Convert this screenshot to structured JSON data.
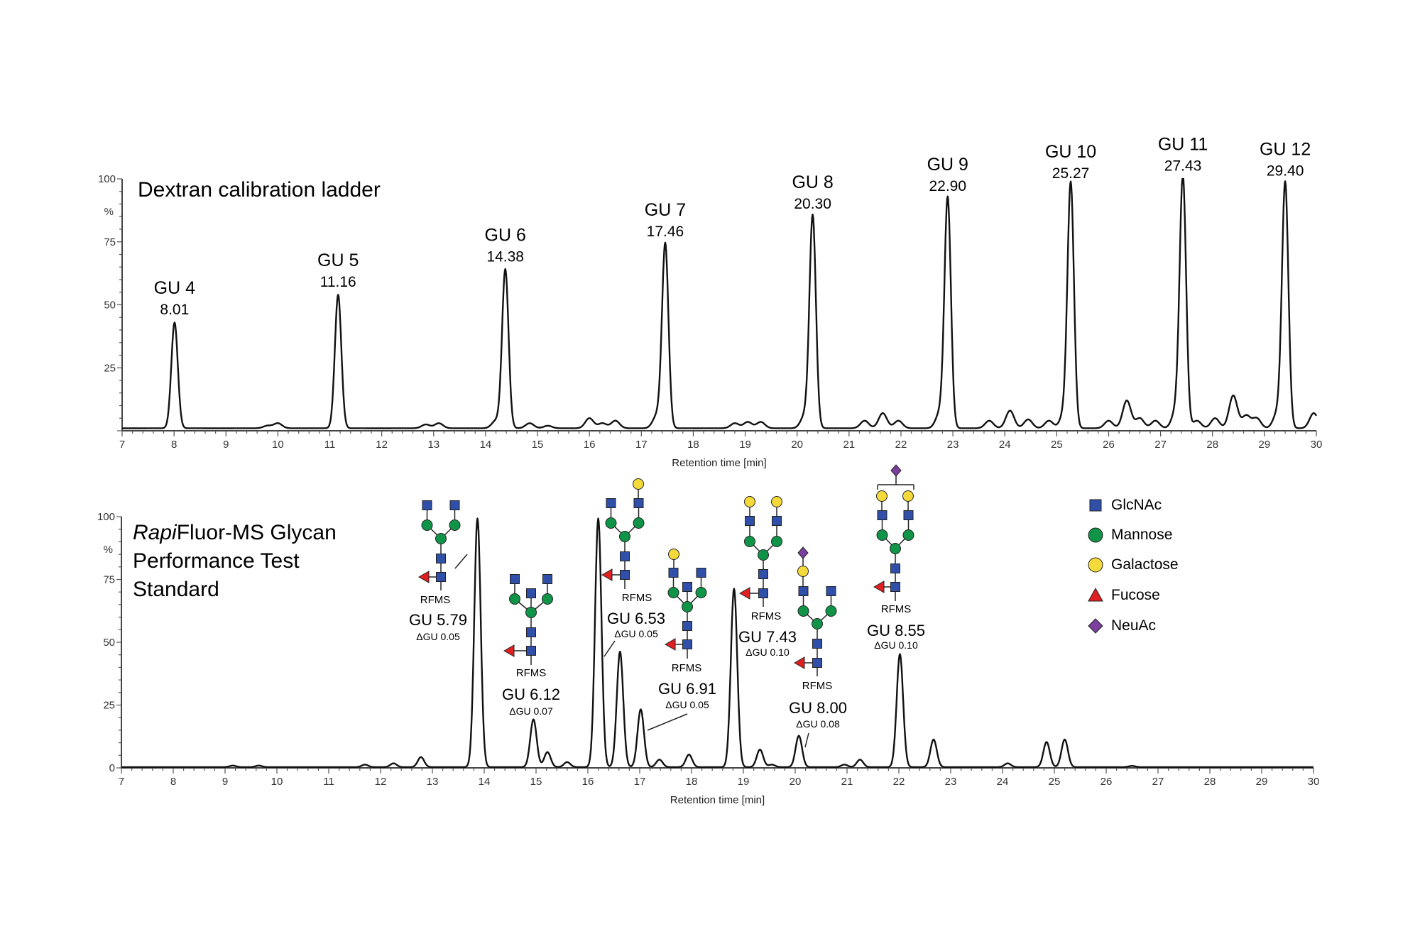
{
  "colors": {
    "trace": "#111111",
    "glcnac": "#2f4fa8",
    "mannose": "#0f9448",
    "galactose": "#f4d93a",
    "fucose": "#e02020",
    "neuac": "#7b3f9e"
  },
  "chart_data": [
    {
      "type": "line",
      "title": "Dextran calibration ladder",
      "xlabel": "Retention time [min]",
      "ylabel": "%",
      "xlim": [
        7,
        30
      ],
      "ylim": [
        0,
        100
      ],
      "xticks": [
        "7",
        "8",
        "9",
        "10",
        "11",
        "12",
        "13",
        "14",
        "15",
        "16",
        "17",
        "18",
        "19",
        "20",
        "21",
        "22",
        "23",
        "24",
        "25",
        "26",
        "27",
        "28",
        "29",
        "30"
      ],
      "yticks": [
        "100",
        "75",
        "50",
        "25"
      ],
      "grid": false,
      "peaks": [
        {
          "gu": "GU 4",
          "rt": "8.01",
          "height": 42
        },
        {
          "gu": "GU 5",
          "rt": "11.16",
          "height": 53
        },
        {
          "gu": "GU 6",
          "rt": "14.38",
          "height": 63
        },
        {
          "gu": "GU 7",
          "rt": "17.46",
          "height": 73
        },
        {
          "gu": "GU 8",
          "rt": "20.30",
          "height": 84
        },
        {
          "gu": "GU 9",
          "rt": "22.90",
          "height": 91
        },
        {
          "gu": "GU 10",
          "rt": "25.27",
          "height": 96
        },
        {
          "gu": "GU 11",
          "rt": "27.43",
          "height": 99
        },
        {
          "gu": "GU 12",
          "rt": "29.40",
          "height": 97
        }
      ],
      "minor_peaks": [
        [
          9.8,
          1
        ],
        [
          10.0,
          2
        ],
        [
          12.85,
          1.5
        ],
        [
          13.1,
          2
        ],
        [
          14.2,
          3
        ],
        [
          14.85,
          2
        ],
        [
          15.2,
          1
        ],
        [
          16.0,
          4
        ],
        [
          16.25,
          2
        ],
        [
          16.5,
          3
        ],
        [
          17.3,
          5
        ],
        [
          18.8,
          2
        ],
        [
          19.05,
          2.5
        ],
        [
          19.3,
          2.5
        ],
        [
          20.15,
          5
        ],
        [
          21.3,
          3
        ],
        [
          21.65,
          6
        ],
        [
          21.95,
          3
        ],
        [
          22.75,
          6
        ],
        [
          23.7,
          3
        ],
        [
          24.1,
          7
        ],
        [
          24.45,
          3.5
        ],
        [
          24.85,
          3
        ],
        [
          25.15,
          6
        ],
        [
          26.0,
          3
        ],
        [
          26.35,
          11
        ],
        [
          26.6,
          4
        ],
        [
          26.9,
          3
        ],
        [
          27.3,
          7
        ],
        [
          27.7,
          3
        ],
        [
          28.05,
          4
        ],
        [
          28.4,
          13
        ],
        [
          28.65,
          5
        ],
        [
          28.85,
          4
        ],
        [
          29.25,
          6
        ],
        [
          29.95,
          6
        ]
      ]
    },
    {
      "type": "line",
      "title_italic": "Rapi",
      "title_rest": "Fluor-MS Glycan",
      "title_line2": "Performance Test",
      "title_line3": "Standard",
      "xlabel": "Retention time [min]",
      "ylabel": "%",
      "xlim": [
        7,
        30
      ],
      "ylim": [
        0,
        100
      ],
      "xticks": [
        "7",
        "8",
        "9",
        "10",
        "11",
        "12",
        "13",
        "14",
        "15",
        "16",
        "17",
        "18",
        "19",
        "20",
        "21",
        "22",
        "23",
        "24",
        "25",
        "26",
        "27",
        "28",
        "29",
        "30"
      ],
      "yticks": [
        "100",
        "75",
        "50",
        "25",
        "0"
      ],
      "grid": false,
      "peaks": [
        [
          9.15,
          0.6
        ],
        [
          9.65,
          0.6
        ],
        [
          11.7,
          1
        ],
        [
          12.25,
          1.5
        ],
        [
          12.78,
          4
        ],
        [
          13.87,
          99
        ],
        [
          14.95,
          19
        ],
        [
          15.22,
          6
        ],
        [
          15.6,
          2
        ],
        [
          16.2,
          99
        ],
        [
          16.62,
          46
        ],
        [
          17.02,
          23
        ],
        [
          17.38,
          3
        ],
        [
          17.95,
          5
        ],
        [
          18.82,
          71
        ],
        [
          19.32,
          7
        ],
        [
          19.55,
          1
        ],
        [
          20.07,
          12.5
        ],
        [
          20.95,
          1
        ],
        [
          21.25,
          3
        ],
        [
          22.02,
          45
        ],
        [
          22.67,
          11
        ],
        [
          24.1,
          1.5
        ],
        [
          24.85,
          10
        ],
        [
          25.2,
          11
        ],
        [
          26.5,
          0.5
        ]
      ],
      "annotations": [
        {
          "reducing_end": "RFMS",
          "gu": "GU 5.79",
          "delta": "ΔGU 0.05"
        },
        {
          "reducing_end": "RFMS",
          "gu": "GU 6.12",
          "delta": "ΔGU 0.07"
        },
        {
          "reducing_end": "RFMS",
          "gu": "GU 6.53",
          "delta": "ΔGU 0.05"
        },
        {
          "reducing_end": "RFMS",
          "gu": "GU 6.91",
          "delta": "ΔGU 0.05"
        },
        {
          "reducing_end": "RFMS",
          "gu": "GU 7.43",
          "delta": "ΔGU 0.10"
        },
        {
          "reducing_end": "RFMS",
          "gu": "GU 8.00",
          "delta": "ΔGU 0.08"
        },
        {
          "reducing_end": "RFMS",
          "gu": "GU 8.55",
          "delta": "ΔGU 0.10"
        }
      ]
    }
  ],
  "legend": [
    {
      "label": "GlcNAc",
      "icon": "square"
    },
    {
      "label": "Mannose",
      "icon": "circle"
    },
    {
      "label": "Galactose",
      "icon": "circle"
    },
    {
      "label": "Fucose",
      "icon": "triangle"
    },
    {
      "label": "NeuAc",
      "icon": "diamond"
    }
  ]
}
